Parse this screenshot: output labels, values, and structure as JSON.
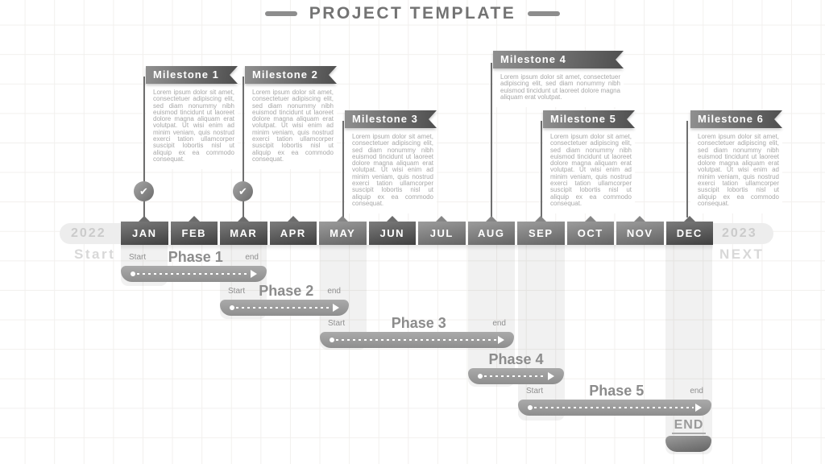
{
  "title": "PROJECT TEMPLATE",
  "timeline": {
    "left_year": "2022",
    "right_year": "2023",
    "left_caption": "Start",
    "right_caption": "NEXT",
    "months": [
      "JAN",
      "FEB",
      "MAR",
      "APR",
      "MAY",
      "JUN",
      "JUL",
      "AUG",
      "SEP",
      "OCT",
      "NOV",
      "DEC"
    ]
  },
  "milestones": [
    {
      "label": "Milestone 1",
      "month": "JAN",
      "completed": true,
      "body": "Lorem ipsum dolor sit amet, consectetuer adipiscing elit, sed diam nonummy nibh euismod tincidunt ut laoreet dolore magna aliquam erat volutpat. Ut wisi enim ad minim veniam, quis nostrud exerci tation ullamcorper suscipit lobortis nisl ut aliquip ex ea commodo consequat."
    },
    {
      "label": "Milestone 2",
      "month": "MAR",
      "completed": true,
      "body": "Lorem ipsum dolor sit amet, consectetuer adipiscing elit, sed diam nonummy nibh euismod tincidunt ut laoreet dolore magna aliquam erat volutpat. Ut wisi enim ad minim veniam, quis nostrud exerci tation ullamcorper suscipit lobortis nisl ut aliquip ex ea commodo consequat."
    },
    {
      "label": "Milestone 3",
      "month": "MAY",
      "completed": false,
      "body": "Lorem ipsum dolor sit amet, consectetuer adipiscing elit, sed diam nonummy nibh euismod tincidunt ut laoreet dolore magna aliquam erat volutpat. Ut wisi enim ad minim veniam, quis nostrud exerci tation ullamcorper suscipit lobortis nisl ut aliquip ex ea commodo consequat."
    },
    {
      "label": "Milestone 4",
      "month": "AUG",
      "completed": false,
      "body": "Lorem ipsum dolor sit amet, consectetuer adipiscing elit, sed diam nonummy nibh euismod tincidunt ut laoreet dolore magna aliquam erat volutpat."
    },
    {
      "label": "Milestone 5",
      "month": "SEP",
      "completed": false,
      "body": "Lorem ipsum dolor sit amet, consectetuer adipiscing elit, sed diam nonummy nibh euismod tincidunt ut laoreet dolore magna aliquam erat volutpat. Ut wisi enim ad minim veniam, quis nostrud exerci tation ullamcorper suscipit lobortis nisl ut aliquip ex ea commodo consequat."
    },
    {
      "label": "Milestone 6",
      "month": "DEC",
      "completed": false,
      "body": "Lorem ipsum dolor sit amet, consectetuer adipiscing elit, sed diam nonummy nibh euismod tincidunt ut laoreet dolore magna aliquam erat volutpat. Ut wisi enim ad minim veniam, quis nostrud exerci tation ullamcorper suscipit lobortis nisl ut aliquip ex ea commodo consequat."
    }
  ],
  "phases": [
    {
      "label": "Phase 1",
      "start_label": "Start",
      "end_label": "end",
      "range": "JAN–FEB"
    },
    {
      "label": "Phase 2",
      "start_label": "Start",
      "end_label": "end",
      "range": "MAR–APR"
    },
    {
      "label": "Phase 3",
      "start_label": "Start",
      "end_label": "end",
      "range": "MAY–AUG"
    },
    {
      "label": "Phase 4",
      "start_label": "",
      "end_label": "",
      "range": "AUG–SEP"
    },
    {
      "label": "Phase 5",
      "start_label": "Start",
      "end_label": "end",
      "range": "SEP–DEC"
    }
  ],
  "end_marker": {
    "label": "END",
    "month": "DEC"
  },
  "icons": {
    "milestone_check": "✔"
  },
  "colors": {
    "banner_dark": "#4e4e4e",
    "banner_light": "#909090",
    "month_dark": "#3f3f3f",
    "month_light": "#9c9c9c",
    "phase_bar": "#9b9b9b",
    "muted_text": "#a8a8a8",
    "year_pill": "#ededed",
    "caption": "#d8d8d8",
    "title": "#737373"
  }
}
